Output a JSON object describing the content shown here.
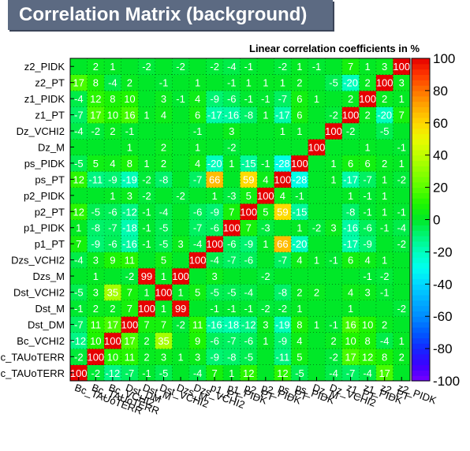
{
  "chart_data": {
    "type": "heatmap",
    "title": "Correlation Matrix (background)",
    "subtitle": "Linear correlation coefficients in %",
    "variables": [
      "Bc_TAUoTERR",
      "Bc_TAUoTERR",
      "Bc_VCHI2",
      "Dst_DM",
      "Dst_M",
      "Dst_VCHI2",
      "Dzs_M",
      "Dzs_VCHI2",
      "p1_PT",
      "p1_PIDK",
      "p2_PT",
      "p2_PIDK",
      "ps_PT",
      "ps_PIDK",
      "Dz_M",
      "Dz_VCHI2",
      "z1_PT",
      "z1_PIDK",
      "z2_PT",
      "z2_PIDK"
    ],
    "y_labels_display": [
      "Bc_TAUoTERR",
      "Bc_TAUoTERR",
      "Bc_VCHI2",
      "Dst_DM",
      "Dst_M",
      "Dst_VCHI2",
      "Dzs_M",
      "Dzs_VCHI2",
      "p1_PT",
      "p1_PIDK",
      "p2_PT",
      "p2_PIDK",
      "ps_PT",
      "ps_PIDK",
      "Dz_M",
      "Dz_VCHI2",
      "z1_PT",
      "z1_PIDK",
      "z2_PT",
      "z2_PIDK"
    ],
    "matrix": [
      [
        100,
        -2,
        -12,
        -7,
        -1,
        -5,
        0,
        -4,
        7,
        1,
        12,
        0,
        12,
        -5,
        0,
        -4,
        -7,
        -4,
        17,
        0
      ],
      [
        -2,
        100,
        10,
        11,
        2,
        3,
        1,
        3,
        -9,
        -8,
        -5,
        0,
        -11,
        5,
        0,
        -2,
        17,
        12,
        8,
        2
      ],
      [
        -12,
        10,
        100,
        17,
        2,
        35,
        0,
        9,
        -6,
        -7,
        -6,
        1,
        -9,
        4,
        0,
        2,
        10,
        8,
        -4,
        1
      ],
      [
        -7,
        11,
        17,
        100,
        7,
        7,
        -2,
        11,
        -16,
        -18,
        -12,
        3,
        -19,
        8,
        1,
        -1,
        16,
        10,
        2,
        0
      ],
      [
        -1,
        2,
        2,
        7,
        100,
        1,
        99,
        0,
        -1,
        -1,
        -1,
        -2,
        -2,
        1,
        0,
        0,
        1,
        0,
        0,
        -2
      ],
      [
        -5,
        3,
        35,
        7,
        1,
        100,
        1,
        5,
        -5,
        -5,
        -4,
        0,
        -8,
        2,
        2,
        0,
        4,
        3,
        -1,
        0
      ],
      [
        0,
        1,
        0,
        -2,
        99,
        1,
        100,
        0,
        3,
        0,
        0,
        -2,
        0,
        0,
        0,
        0,
        0,
        -1,
        -2,
        0
      ],
      [
        -4,
        3,
        9,
        11,
        0,
        5,
        0,
        100,
        -4,
        -7,
        -6,
        0,
        -7,
        4,
        1,
        -1,
        6,
        4,
        1,
        0
      ],
      [
        7,
        -9,
        -6,
        -16,
        -1,
        -5,
        3,
        -4,
        100,
        -6,
        -9,
        1,
        66,
        -20,
        0,
        0,
        -17,
        -9,
        0,
        -2
      ],
      [
        1,
        -8,
        -7,
        -18,
        -1,
        -5,
        0,
        -7,
        -6,
        100,
        7,
        -3,
        0,
        1,
        -2,
        3,
        -16,
        -6,
        -1,
        -4
      ],
      [
        12,
        -5,
        -6,
        -12,
        -1,
        -4,
        0,
        -6,
        -9,
        7,
        100,
        5,
        59,
        -15,
        0,
        0,
        -8,
        -1,
        1,
        -1
      ],
      [
        0,
        0,
        1,
        3,
        -2,
        0,
        -2,
        0,
        1,
        -3,
        5,
        100,
        4,
        -1,
        0,
        0,
        1,
        -1,
        1,
        0
      ],
      [
        12,
        -11,
        -9,
        -19,
        -2,
        -8,
        0,
        -7,
        66,
        0,
        59,
        4,
        100,
        -28,
        0,
        1,
        -17,
        -7,
        1,
        -2
      ],
      [
        -5,
        5,
        4,
        8,
        1,
        2,
        0,
        4,
        -20,
        1,
        -15,
        -1,
        -28,
        100,
        0,
        1,
        6,
        6,
        2,
        1
      ],
      [
        0,
        0,
        0,
        1,
        0,
        2,
        0,
        1,
        0,
        -2,
        0,
        0,
        0,
        0,
        100,
        0,
        0,
        1,
        0,
        -1
      ],
      [
        -4,
        -2,
        2,
        -1,
        0,
        0,
        0,
        -1,
        0,
        3,
        0,
        0,
        1,
        1,
        0,
        100,
        -2,
        0,
        -5,
        0
      ],
      [
        -7,
        17,
        10,
        16,
        1,
        4,
        0,
        6,
        -17,
        -16,
        -8,
        1,
        -17,
        6,
        0,
        -2,
        100,
        2,
        -20,
        7
      ],
      [
        -4,
        12,
        8,
        10,
        0,
        3,
        -1,
        4,
        -9,
        -6,
        -1,
        -1,
        -7,
        6,
        1,
        0,
        2,
        100,
        2,
        1
      ],
      [
        17,
        8,
        -4,
        2,
        0,
        -1,
        0,
        1,
        0,
        -1,
        1,
        1,
        1,
        2,
        0,
        -5,
        -20,
        2,
        100,
        3
      ],
      [
        0,
        2,
        1,
        0,
        -2,
        0,
        -2,
        0,
        -2,
        -4,
        -1,
        0,
        -2,
        1,
        -1,
        0,
        7,
        1,
        3,
        100
      ]
    ],
    "zlim": [
      -100,
      100
    ],
    "colorbar_ticks": [
      -100,
      -80,
      -60,
      -40,
      -20,
      0,
      20,
      40,
      60,
      80,
      100
    ],
    "grid": true
  }
}
